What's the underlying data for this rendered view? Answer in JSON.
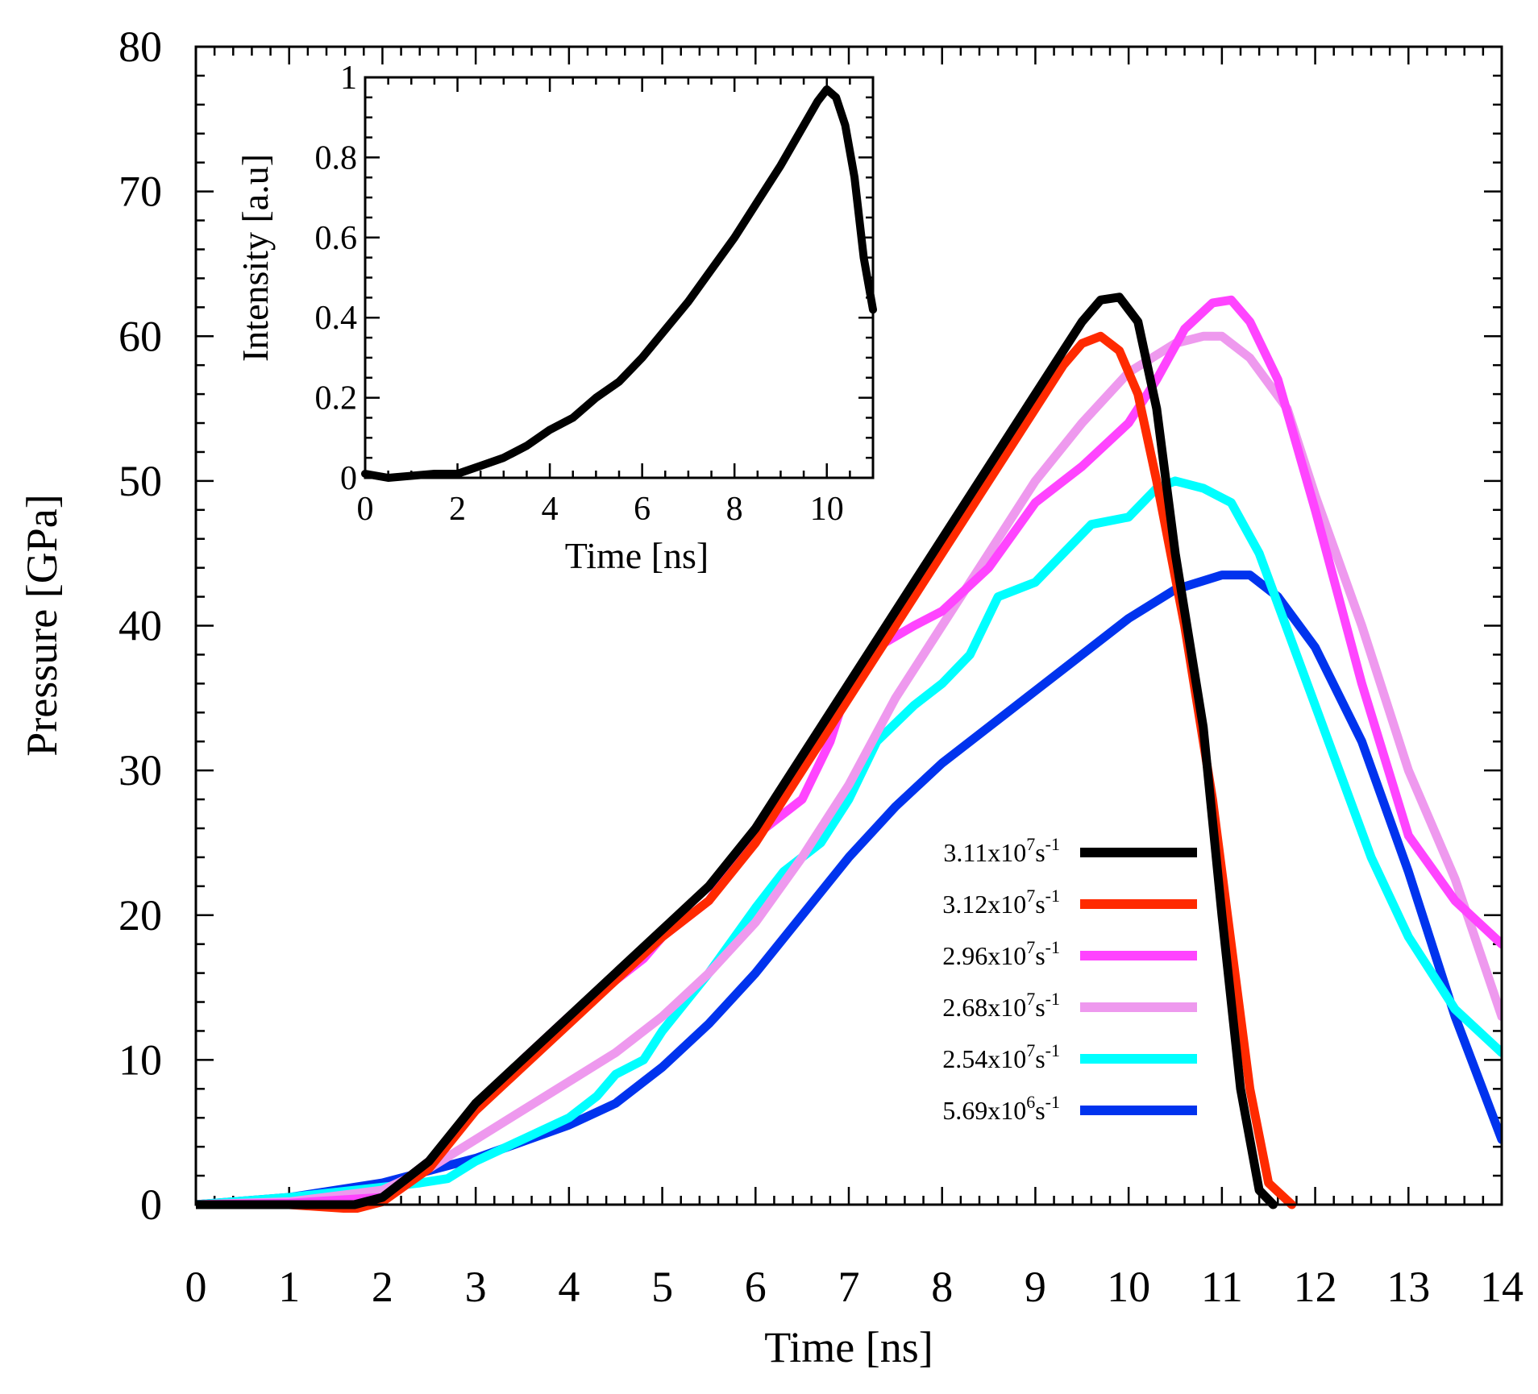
{
  "chart_data": [
    {
      "type": "line",
      "id": "main",
      "title": "",
      "xlabel": "Time [ns]",
      "ylabel": "Pressure [GPa]",
      "xlim": [
        0,
        14
      ],
      "ylim": [
        0,
        80
      ],
      "xticks": [
        0,
        1,
        2,
        3,
        4,
        5,
        6,
        7,
        8,
        9,
        10,
        11,
        12,
        13,
        14
      ],
      "yticks": [
        0,
        10,
        20,
        30,
        40,
        50,
        60,
        70,
        80
      ],
      "xtick_labels": [
        "0",
        "1",
        "2",
        "3",
        "4",
        "5",
        "6",
        "7",
        "8",
        "9",
        "10",
        "11",
        "12",
        "13",
        "14"
      ],
      "ytick_labels": [
        "0",
        "10",
        "20",
        "30",
        "40",
        "50",
        "60",
        "70",
        "80"
      ],
      "grid": false,
      "legend_position": "bottom-center",
      "series": [
        {
          "name": "3.11x10^7 s^-1",
          "label_main": "3.11x10",
          "label_exp": "7",
          "label_unit": "s",
          "label_unit_exp": "-1",
          "color": "#000000",
          "points": [
            [
              0,
              0
            ],
            [
              1,
              0
            ],
            [
              1.7,
              0
            ],
            [
              2.0,
              0.5
            ],
            [
              2.5,
              3
            ],
            [
              3,
              7
            ],
            [
              3.5,
              10
            ],
            [
              4,
              13
            ],
            [
              4.5,
              16
            ],
            [
              5,
              19
            ],
            [
              5.5,
              22
            ],
            [
              6,
              26
            ],
            [
              6.5,
              31
            ],
            [
              7,
              36
            ],
            [
              7.5,
              41
            ],
            [
              8,
              46
            ],
            [
              8.5,
              51
            ],
            [
              9,
              56
            ],
            [
              9.3,
              59
            ],
            [
              9.5,
              61
            ],
            [
              9.7,
              62.5
            ],
            [
              9.9,
              62.7
            ],
            [
              10.1,
              61
            ],
            [
              10.3,
              55
            ],
            [
              10.5,
              45
            ],
            [
              10.8,
              33
            ],
            [
              11.0,
              20
            ],
            [
              11.2,
              8
            ],
            [
              11.4,
              1
            ],
            [
              11.55,
              0
            ]
          ]
        },
        {
          "name": "3.12x10^7 s^-1",
          "label_main": "3.12x10",
          "label_exp": "7",
          "label_unit": "s",
          "label_unit_exp": "-1",
          "color": "#ff2a00",
          "points": [
            [
              0,
              0
            ],
            [
              1,
              0
            ],
            [
              1.7,
              -0.3
            ],
            [
              2.0,
              0.2
            ],
            [
              2.5,
              2.5
            ],
            [
              3,
              6.5
            ],
            [
              3.5,
              9.5
            ],
            [
              4,
              12.5
            ],
            [
              4.5,
              15.5
            ],
            [
              5,
              18.5
            ],
            [
              5.5,
              21
            ],
            [
              6,
              25
            ],
            [
              6.5,
              30
            ],
            [
              7,
              35
            ],
            [
              7.5,
              40
            ],
            [
              8,
              45
            ],
            [
              8.5,
              50
            ],
            [
              9,
              55
            ],
            [
              9.3,
              58
            ],
            [
              9.5,
              59.5
            ],
            [
              9.7,
              60
            ],
            [
              9.9,
              59
            ],
            [
              10.1,
              56
            ],
            [
              10.3,
              50
            ],
            [
              10.6,
              40
            ],
            [
              10.9,
              28
            ],
            [
              11.1,
              18
            ],
            [
              11.3,
              8
            ],
            [
              11.5,
              1.5
            ],
            [
              11.75,
              0
            ]
          ]
        },
        {
          "name": "2.96x10^7 s^-1",
          "label_main": "2.96x10",
          "label_exp": "7",
          "label_unit": "s",
          "label_unit_exp": "-1",
          "color": "#ff44ff",
          "points": [
            [
              0,
              0
            ],
            [
              1,
              0.1
            ],
            [
              2,
              0.5
            ],
            [
              2.5,
              3
            ],
            [
              3,
              6.5
            ],
            [
              3.5,
              10
            ],
            [
              4,
              13
            ],
            [
              4.5,
              15.5
            ],
            [
              4.8,
              17
            ],
            [
              5,
              18.5
            ],
            [
              5.5,
              21
            ],
            [
              6,
              25.5
            ],
            [
              6.5,
              28
            ],
            [
              6.8,
              32
            ],
            [
              7,
              36
            ],
            [
              7.3,
              38.5
            ],
            [
              7.7,
              40
            ],
            [
              8,
              41
            ],
            [
              8.5,
              44
            ],
            [
              9,
              48.5
            ],
            [
              9.5,
              51
            ],
            [
              10,
              54
            ],
            [
              10.3,
              57
            ],
            [
              10.6,
              60.5
            ],
            [
              10.9,
              62.3
            ],
            [
              11.1,
              62.5
            ],
            [
              11.3,
              61
            ],
            [
              11.6,
              57
            ],
            [
              12,
              48
            ],
            [
              12.5,
              36
            ],
            [
              13,
              25.5
            ],
            [
              13.5,
              21
            ],
            [
              14,
              18
            ]
          ]
        },
        {
          "name": "2.68x10^7 s^-1",
          "label_main": "2.68x10",
          "label_exp": "7",
          "label_unit": "s",
          "label_unit_exp": "-1",
          "color": "#ee99ee",
          "points": [
            [
              0,
              0
            ],
            [
              1,
              0.2
            ],
            [
              2,
              1
            ],
            [
              2.5,
              2.5
            ],
            [
              3,
              4.5
            ],
            [
              3.5,
              6.5
            ],
            [
              4,
              8.5
            ],
            [
              4.5,
              10.5
            ],
            [
              5,
              13
            ],
            [
              5.5,
              16
            ],
            [
              6,
              19.5
            ],
            [
              6.5,
              24
            ],
            [
              7,
              29
            ],
            [
              7.5,
              35
            ],
            [
              8,
              40
            ],
            [
              8.5,
              45
            ],
            [
              9,
              50
            ],
            [
              9.5,
              54
            ],
            [
              10,
              57.5
            ],
            [
              10.5,
              59.5
            ],
            [
              10.8,
              60
            ],
            [
              11,
              60
            ],
            [
              11.3,
              58.5
            ],
            [
              11.7,
              55
            ],
            [
              12,
              49
            ],
            [
              12.5,
              40
            ],
            [
              13,
              30
            ],
            [
              13.5,
              22.5
            ],
            [
              14,
              13
            ]
          ]
        },
        {
          "name": "2.54x10^7 s^-1",
          "label_main": "2.54x10",
          "label_exp": "7",
          "label_unit": "s",
          "label_unit_exp": "-1",
          "color": "#00ffff",
          "points": [
            [
              0,
              0
            ],
            [
              1,
              0.5
            ],
            [
              2,
              1.2
            ],
            [
              2.4,
              1.5
            ],
            [
              2.7,
              1.8
            ],
            [
              3,
              3
            ],
            [
              3.5,
              4.5
            ],
            [
              4,
              6
            ],
            [
              4.3,
              7.5
            ],
            [
              4.5,
              9
            ],
            [
              4.8,
              10
            ],
            [
              5,
              12
            ],
            [
              5.5,
              16
            ],
            [
              6,
              20.5
            ],
            [
              6.3,
              23
            ],
            [
              6.7,
              25
            ],
            [
              7,
              28
            ],
            [
              7.3,
              32
            ],
            [
              7.7,
              34.5
            ],
            [
              8,
              36
            ],
            [
              8.3,
              38
            ],
            [
              8.6,
              42
            ],
            [
              9,
              43
            ],
            [
              9.3,
              45
            ],
            [
              9.6,
              47
            ],
            [
              10,
              47.5
            ],
            [
              10.3,
              49.5
            ],
            [
              10.5,
              50
            ],
            [
              10.8,
              49.5
            ],
            [
              11.1,
              48.5
            ],
            [
              11.4,
              45
            ],
            [
              11.8,
              38
            ],
            [
              12.2,
              31
            ],
            [
              12.6,
              24
            ],
            [
              13,
              18.5
            ],
            [
              13.5,
              13.5
            ],
            [
              14,
              10.5
            ]
          ]
        },
        {
          "name": "5.69x10^6 s^-1",
          "label_main": "5.69x10",
          "label_exp": "6",
          "label_unit": "s",
          "label_unit_exp": "-1",
          "color": "#0033ee",
          "points": [
            [
              0,
              0
            ],
            [
              1,
              0.5
            ],
            [
              2,
              1.5
            ],
            [
              3,
              3.2
            ],
            [
              4,
              5.5
            ],
            [
              4.5,
              7
            ],
            [
              5,
              9.5
            ],
            [
              5.5,
              12.5
            ],
            [
              6,
              16
            ],
            [
              6.5,
              20
            ],
            [
              7,
              24
            ],
            [
              7.5,
              27.5
            ],
            [
              8,
              30.5
            ],
            [
              8.5,
              33
            ],
            [
              9,
              35.5
            ],
            [
              9.5,
              38
            ],
            [
              10,
              40.5
            ],
            [
              10.5,
              42.5
            ],
            [
              11,
              43.5
            ],
            [
              11.3,
              43.5
            ],
            [
              11.6,
              42
            ],
            [
              12,
              38.5
            ],
            [
              12.5,
              32
            ],
            [
              13,
              23
            ],
            [
              13.5,
              13
            ],
            [
              14,
              4.5
            ]
          ]
        }
      ]
    },
    {
      "type": "line",
      "id": "inset",
      "title": "",
      "xlabel": "Time [ns]",
      "ylabel": "Intensity [a.u]",
      "xlim": [
        0,
        11
      ],
      "ylim": [
        0,
        1
      ],
      "xticks": [
        0,
        2,
        4,
        6,
        8,
        10
      ],
      "yticks": [
        0,
        0.2,
        0.4,
        0.6,
        0.8,
        1
      ],
      "xtick_labels": [
        "0",
        "2",
        "4",
        "6",
        "8",
        "10"
      ],
      "ytick_labels": [
        "0",
        "0.2",
        "0.4",
        "0.6",
        "0.8",
        "1"
      ],
      "grid": false,
      "series": [
        {
          "name": "Intensity",
          "color": "#000000",
          "points": [
            [
              0,
              0.01
            ],
            [
              0.5,
              0.0
            ],
            [
              1.0,
              0.005
            ],
            [
              1.5,
              0.01
            ],
            [
              2.0,
              0.01
            ],
            [
              2.5,
              0.03
            ],
            [
              3.0,
              0.05
            ],
            [
              3.5,
              0.08
            ],
            [
              4.0,
              0.12
            ],
            [
              4.5,
              0.15
            ],
            [
              5.0,
              0.2
            ],
            [
              5.5,
              0.24
            ],
            [
              6.0,
              0.3
            ],
            [
              6.5,
              0.37
            ],
            [
              7.0,
              0.44
            ],
            [
              7.5,
              0.52
            ],
            [
              8.0,
              0.6
            ],
            [
              8.5,
              0.69
            ],
            [
              9.0,
              0.78
            ],
            [
              9.5,
              0.88
            ],
            [
              9.8,
              0.94
            ],
            [
              10.0,
              0.97
            ],
            [
              10.2,
              0.95
            ],
            [
              10.4,
              0.88
            ],
            [
              10.6,
              0.75
            ],
            [
              10.8,
              0.55
            ],
            [
              11.0,
              0.42
            ]
          ]
        }
      ]
    }
  ]
}
